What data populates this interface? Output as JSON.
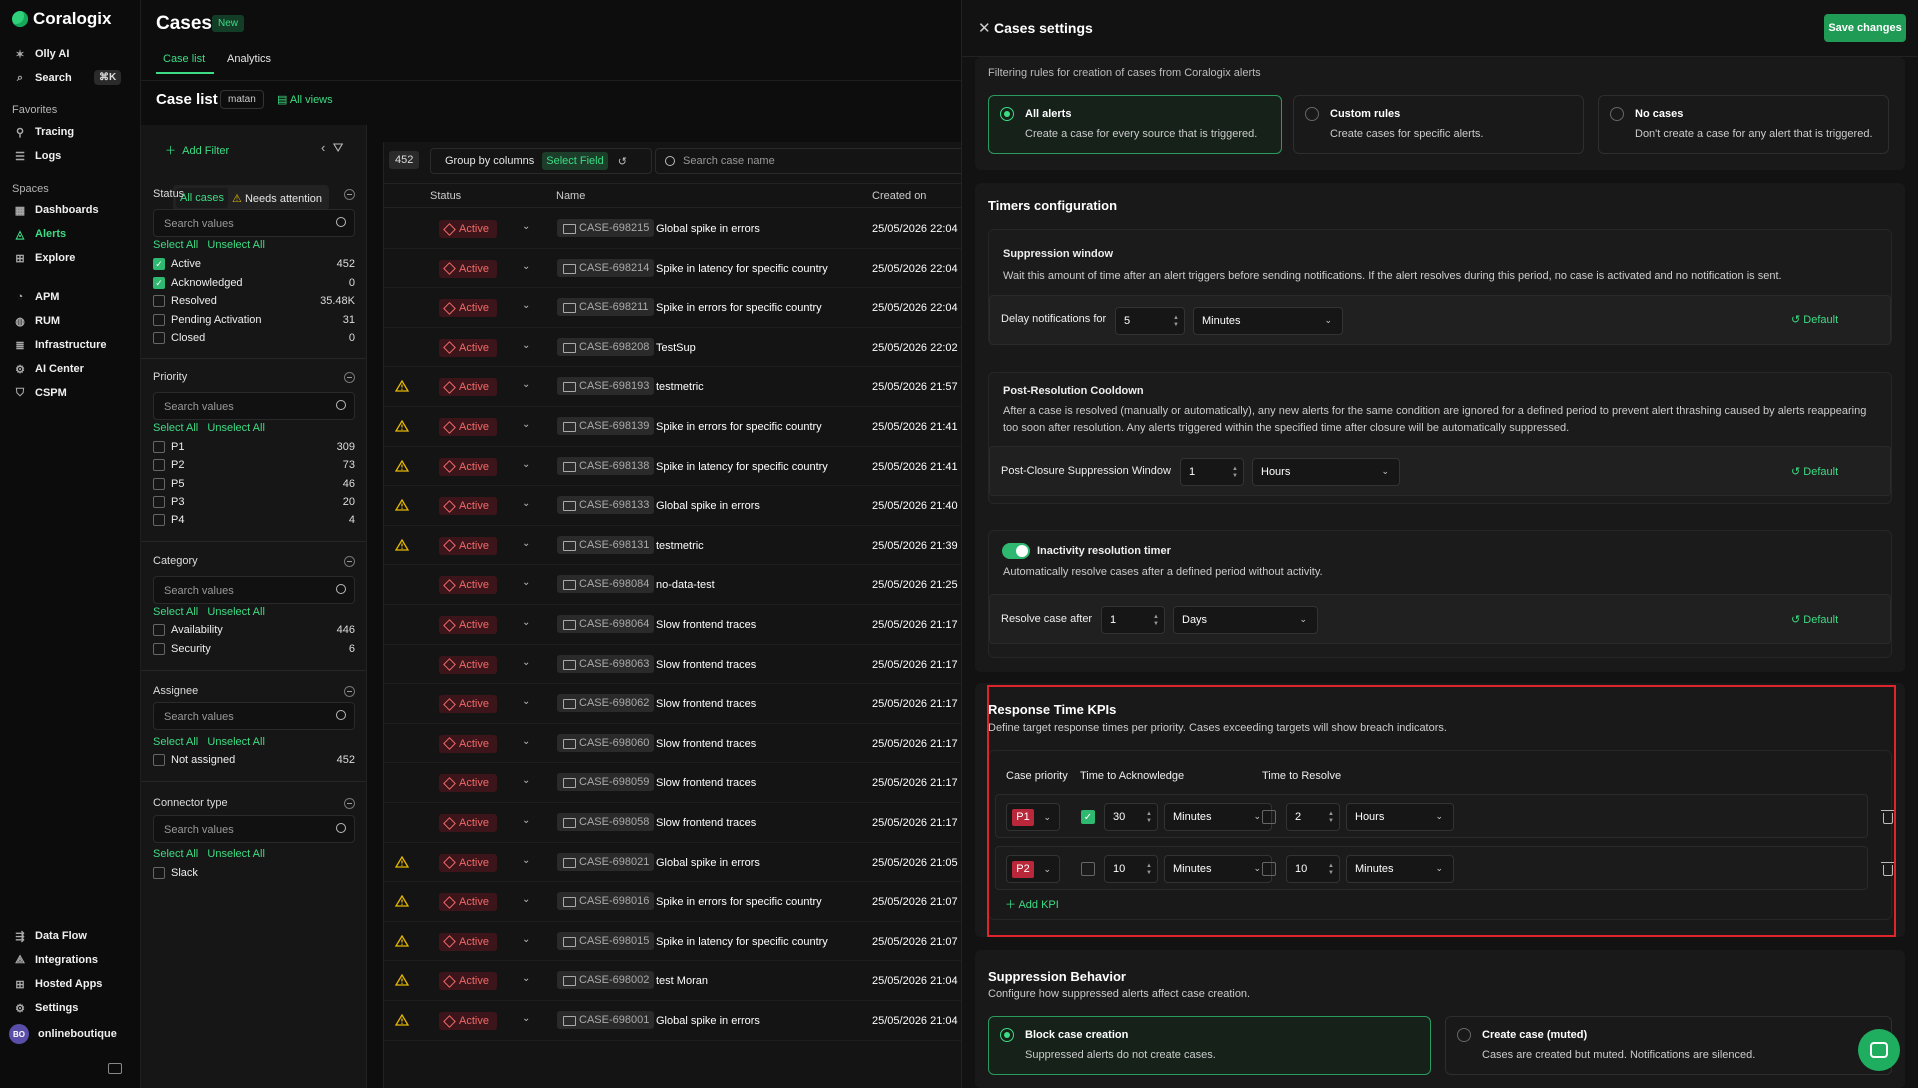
{
  "nav": {
    "brand": "Coralogix",
    "olly": "Olly AI",
    "search": "Search",
    "search_kbd": "⌘K",
    "favorites_label": "Favorites",
    "tracing": "Tracing",
    "logs": "Logs",
    "spaces_label": "Spaces",
    "dashboards": "Dashboards",
    "alerts": "Alerts",
    "explore": "Explore",
    "apm": "APM",
    "rum": "RUM",
    "infrastructure": "Infrastructure",
    "ai_center": "AI Center",
    "cspm": "CSPM",
    "data_flow": "Data Flow",
    "integrations": "Integrations",
    "hosted_apps": "Hosted Apps",
    "settings": "Settings",
    "user_initials": "BO",
    "user_name": "onlineboutique"
  },
  "header": {
    "title": "Cases",
    "badge": "New",
    "tabs": [
      "Case list",
      "Analytics"
    ],
    "list_title": "Case list",
    "view_chip": "matan",
    "all_views": "All views"
  },
  "filters": {
    "add_filter": "Add Filter",
    "seg_all": "All cases",
    "seg_attention": "Needs attention",
    "search_placeholder": "Search values",
    "select_all": "Select All",
    "unselect_all": "Unselect All",
    "status": {
      "title": "Status",
      "items": [
        {
          "label": "Active",
          "count": "452",
          "checked": true
        },
        {
          "label": "Acknowledged",
          "count": "0",
          "checked": true
        },
        {
          "label": "Resolved",
          "count": "35.48K",
          "checked": false
        },
        {
          "label": "Pending Activation",
          "count": "31",
          "checked": false
        },
        {
          "label": "Closed",
          "count": "0",
          "checked": false
        }
      ]
    },
    "priority": {
      "title": "Priority",
      "items": [
        {
          "label": "P1",
          "count": "309"
        },
        {
          "label": "P2",
          "count": "73"
        },
        {
          "label": "P5",
          "count": "46"
        },
        {
          "label": "P3",
          "count": "20"
        },
        {
          "label": "P4",
          "count": "4"
        }
      ]
    },
    "category": {
      "title": "Category",
      "items": [
        {
          "label": "Availability",
          "count": "446"
        },
        {
          "label": "Security",
          "count": "6"
        }
      ]
    },
    "assignee": {
      "title": "Assignee",
      "items": [
        {
          "label": "Not assigned",
          "count": "452"
        }
      ]
    },
    "connector": {
      "title": "Connector type",
      "items": [
        {
          "label": "Slack",
          "count": ""
        }
      ]
    }
  },
  "table": {
    "count": "452",
    "group_by": "Group by columns",
    "select_field": "Select Field",
    "search_placeholder": "Search case name",
    "columns": [
      "Status",
      "Name",
      "Created on"
    ],
    "status_label": "Active",
    "rows": [
      {
        "warn": false,
        "id": "CASE-698215",
        "name": "Global spike in errors",
        "date": "25/05/2026 22:04"
      },
      {
        "warn": false,
        "id": "CASE-698214",
        "name": "Spike in latency for specific country",
        "date": "25/05/2026 22:04"
      },
      {
        "warn": false,
        "id": "CASE-698211",
        "name": "Spike in errors for specific country",
        "date": "25/05/2026 22:04"
      },
      {
        "warn": false,
        "id": "CASE-698208",
        "name": "TestSup",
        "date": "25/05/2026 22:02"
      },
      {
        "warn": true,
        "id": "CASE-698193",
        "name": "testmetric",
        "date": "25/05/2026 21:57"
      },
      {
        "warn": true,
        "id": "CASE-698139",
        "name": "Spike in errors for specific country",
        "date": "25/05/2026 21:41"
      },
      {
        "warn": true,
        "id": "CASE-698138",
        "name": "Spike in latency for specific country",
        "date": "25/05/2026 21:41"
      },
      {
        "warn": true,
        "id": "CASE-698133",
        "name": "Global spike in errors",
        "date": "25/05/2026 21:40"
      },
      {
        "warn": true,
        "id": "CASE-698131",
        "name": "testmetric",
        "date": "25/05/2026 21:39"
      },
      {
        "warn": false,
        "id": "CASE-698084",
        "name": "no-data-test",
        "date": "25/05/2026 21:25"
      },
      {
        "warn": false,
        "id": "CASE-698064",
        "name": "Slow frontend traces",
        "date": "25/05/2026 21:17"
      },
      {
        "warn": false,
        "id": "CASE-698063",
        "name": "Slow frontend traces",
        "date": "25/05/2026 21:17"
      },
      {
        "warn": false,
        "id": "CASE-698062",
        "name": "Slow frontend traces",
        "date": "25/05/2026 21:17"
      },
      {
        "warn": false,
        "id": "CASE-698060",
        "name": "Slow frontend traces",
        "date": "25/05/2026 21:17"
      },
      {
        "warn": false,
        "id": "CASE-698059",
        "name": "Slow frontend traces",
        "date": "25/05/2026 21:17"
      },
      {
        "warn": false,
        "id": "CASE-698058",
        "name": "Slow frontend traces",
        "date": "25/05/2026 21:17"
      },
      {
        "warn": true,
        "id": "CASE-698021",
        "name": "Global spike in errors",
        "date": "25/05/2026 21:05"
      },
      {
        "warn": true,
        "id": "CASE-698016",
        "name": "Spike in errors for specific country",
        "date": "25/05/2026 21:07"
      },
      {
        "warn": true,
        "id": "CASE-698015",
        "name": "Spike in latency for specific country",
        "date": "25/05/2026 21:07"
      },
      {
        "warn": true,
        "id": "CASE-698002",
        "name": "test Moran",
        "date": "25/05/2026 21:04"
      },
      {
        "warn": true,
        "id": "CASE-698001",
        "name": "Global spike in errors",
        "date": "25/05/2026 21:04"
      }
    ]
  },
  "settings": {
    "title": "Cases settings",
    "save": "Save changes",
    "filter_sub": "Filtering rules for creation of cases from Coralogix alerts",
    "creation_options": [
      {
        "title": "All alerts",
        "desc": "Create a case for every source that is triggered.",
        "selected": true
      },
      {
        "title": "Custom rules",
        "desc": "Create cases for specific alerts.",
        "selected": false
      },
      {
        "title": "No cases",
        "desc": "Don't create a case for any alert that is triggered.",
        "selected": false
      }
    ],
    "timers": {
      "title": "Timers configuration",
      "suppression_title": "Suppression window",
      "suppression_desc": "Wait this amount of time after an alert triggers before sending notifications. If the alert resolves during this period, no case is activated and no notification is sent.",
      "delay_label": "Delay notifications for",
      "delay_value": "5",
      "delay_unit": "Minutes",
      "default_label": "Default",
      "cooldown_title": "Post-Resolution Cooldown",
      "cooldown_desc": "After a case is resolved (manually or automatically), any new alerts for the same condition are ignored for a defined period to prevent alert thrashing caused by alerts reappearing too soon after resolution. Any alerts triggered within the specified time after closure will be automatically suppressed.",
      "cooldown_label": "Post-Closure Suppression Window",
      "cooldown_value": "1",
      "cooldown_unit": "Hours",
      "inactivity_title": "Inactivity resolution timer",
      "inactivity_desc": "Automatically resolve cases after a defined period without activity.",
      "resolve_label": "Resolve case after",
      "resolve_value": "1",
      "resolve_unit": "Days"
    },
    "kpis": {
      "title": "Response Time KPIs",
      "desc": "Define target response times per priority. Cases exceeding targets will show breach indicators.",
      "col_priority": "Case priority",
      "col_ack": "Time to Acknowledge",
      "col_resolve": "Time to Resolve",
      "rows": [
        {
          "priority": "P1",
          "ack_checked": true,
          "ack_value": "30",
          "ack_unit": "Minutes",
          "res_checked": false,
          "res_value": "2",
          "res_unit": "Hours"
        },
        {
          "priority": "P2",
          "ack_checked": false,
          "ack_value": "10",
          "ack_unit": "Minutes",
          "res_checked": false,
          "res_value": "10",
          "res_unit": "Minutes"
        }
      ],
      "add": "Add KPI"
    },
    "suppression": {
      "title": "Suppression Behavior",
      "desc": "Configure how suppressed alerts affect case creation.",
      "options": [
        {
          "title": "Block case creation",
          "desc": "Suppressed alerts do not create cases.",
          "selected": true
        },
        {
          "title": "Create case (muted)",
          "desc": "Cases are created but muted. Notifications are silenced.",
          "selected": false
        }
      ]
    }
  },
  "colors": {
    "accent": "#3ddc84",
    "danger": "#f06a6a",
    "highlight": "#e0242b",
    "p_badge": "#b8283a"
  }
}
